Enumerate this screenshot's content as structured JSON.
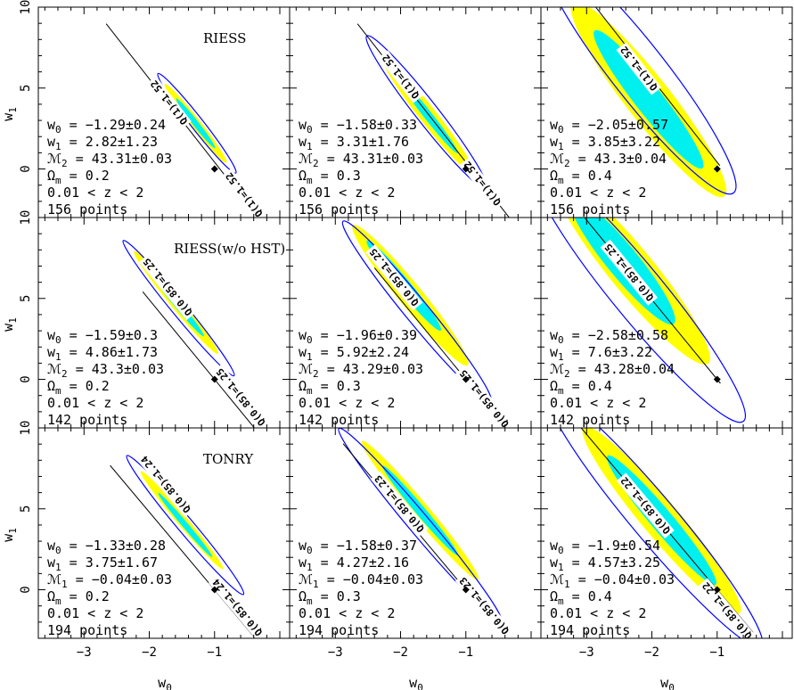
{
  "chart_data": {
    "type": "contour-grid",
    "x_axis": {
      "label_base": "w",
      "label_sub": "0",
      "range": [
        -3.7,
        0.15
      ],
      "ticks": [
        -3,
        -2,
        -1
      ]
    },
    "y_axis": {
      "label_base": "w",
      "label_sub": "1",
      "range": [
        -3,
        10
      ],
      "ticks": [
        0,
        5,
        10
      ]
    },
    "colors": {
      "inner_region": "#00f0f0",
      "middle_region": "#ffff00",
      "outer_contour": "#0000ff",
      "degeneracy_line": "#000000",
      "fiducial_marker": "#000000"
    },
    "panels": [
      {
        "row": 0,
        "col": 0,
        "title": "RIESS",
        "line_label": "Q(1)=1.52",
        "stats": {
          "w0": "−1.29±0.24",
          "w1": "2.82±1.23",
          "M_sub": "2",
          "M": "43.31±0.03",
          "omega_m": "0.2",
          "z_range": "0.01 < z < 2",
          "points": "156 points"
        },
        "fiducial": [
          -1,
          0
        ],
        "best_fit": [
          -1.29,
          2.82
        ],
        "line": {
          "slope": -5.15,
          "intercept": -4.73,
          "x_range": [
            -2.66,
            0.15
          ]
        },
        "label_positions": [
          [
            -1.7,
            4.1
          ],
          [
            -0.55,
            -1.6
          ]
        ],
        "contours": [
          {
            "level": "outer",
            "center": [
              -1.27,
              2.82
            ],
            "semi_major": 3.9,
            "semi_minor": 0.095
          },
          {
            "level": "middle",
            "center": [
              -1.29,
              2.82
            ],
            "semi_major": 3.1,
            "semi_minor": 0.075
          },
          {
            "level": "inner",
            "center": [
              -1.29,
              2.82
            ],
            "semi_major": 1.95,
            "semi_minor": 0.045
          }
        ]
      },
      {
        "row": 0,
        "col": 1,
        "title": "",
        "line_label": "Q(1)=1.52",
        "stats": {
          "w0": "−1.58±0.33",
          "w1": "3.31±1.76",
          "M_sub": "2",
          "M": "43.31±0.03",
          "omega_m": "0.3",
          "z_range": "0.01 < z < 2",
          "points": "156 points"
        },
        "fiducial": [
          -1,
          0
        ],
        "best_fit": [
          -1.58,
          3.31
        ],
        "line": {
          "slope": -5.15,
          "intercept": -4.73,
          "x_range": [
            -2.66,
            -0.33
          ]
        },
        "label_positions": [
          [
            -2.0,
            5.7
          ],
          [
            -0.75,
            -0.9
          ]
        ],
        "contours": [
          {
            "level": "outer",
            "center": [
              -1.6,
              3.5
            ],
            "semi_major": 6.0,
            "semi_minor": 0.17
          },
          {
            "level": "middle",
            "center": [
              -1.58,
              3.31
            ],
            "semi_major": 4.6,
            "semi_minor": 0.13
          },
          {
            "level": "inner",
            "center": [
              -1.58,
              3.31
            ],
            "semi_major": 2.95,
            "semi_minor": 0.065
          }
        ]
      },
      {
        "row": 0,
        "col": 2,
        "title": "",
        "line_label": "Q(1)=1.52",
        "stats": {
          "w0": "−2.05±0.57",
          "w1": "3.85±3.22",
          "M_sub": "2",
          "M": "43.3±0.04",
          "omega_m": "0.4",
          "z_range": "0.01 < z < 2",
          "points": "156 points"
        },
        "fiducial": [
          -1,
          0
        ],
        "best_fit": [
          -2.05,
          3.85
        ],
        "line": {
          "slope": -5.15,
          "intercept": -4.73,
          "x_range": [
            -2.95,
            -0.96
          ]
        },
        "label_positions": [
          [
            -2.2,
            6.2
          ]
        ],
        "contours": [
          {
            "level": "outer",
            "center": [
              -2.2,
              6.0
            ],
            "semi_major": 9.5,
            "semi_minor": 0.42
          },
          {
            "level": "middle",
            "center": [
              -2.05,
              4.3
            ],
            "semi_major": 7.6,
            "semi_minor": 0.34
          },
          {
            "level": "inner",
            "center": [
              -2.05,
              4.3
            ],
            "semi_major": 5.4,
            "semi_minor": 0.21
          }
        ]
      },
      {
        "row": 1,
        "col": 0,
        "title": "RIESS(w/o HST)",
        "line_label": "Q(0.85)=1.25",
        "stats": {
          "w0": "−1.59±0.3",
          "w1": "4.86±1.73",
          "M_sub": "2",
          "M": "43.3±0.03",
          "omega_m": "0.2",
          "z_range": "0.01 < z < 2",
          "points": "142 points"
        },
        "fiducial": [
          -1,
          0
        ],
        "best_fit": [
          -1.59,
          4.86
        ],
        "line": {
          "slope": -4.92,
          "intercept": -4.92,
          "x_range": [
            -2.1,
            0.15
          ]
        },
        "label_positions": [
          [
            -1.72,
            5.7
          ],
          [
            -0.6,
            -1.1
          ]
        ],
        "contours": [
          {
            "level": "outer",
            "center": [
              -1.55,
              4.4
            ],
            "semi_major": 5.4,
            "semi_minor": 0.11
          },
          {
            "level": "middle",
            "center": [
              -1.59,
              4.75
            ],
            "semi_major": 4.1,
            "semi_minor": 0.09
          },
          {
            "level": "inner",
            "center": [
              -1.59,
              4.75
            ],
            "semi_major": 2.7,
            "semi_minor": 0.055
          }
        ]
      },
      {
        "row": 1,
        "col": 1,
        "title": "",
        "line_label": "Q(0.85)=1.25",
        "stats": {
          "w0": "−1.96±0.39",
          "w1": "5.92±2.24",
          "M_sub": "2",
          "M": "43.29±0.03",
          "omega_m": "0.3",
          "z_range": "0.01 < z < 2",
          "points": "142 points"
        },
        "fiducial": [
          -1,
          0
        ],
        "best_fit": [
          -1.96,
          5.92
        ],
        "line": {
          "slope": -4.92,
          "intercept": -4.92,
          "x_range": [
            -2.4,
            -0.75
          ]
        },
        "label_positions": [
          [
            -2.1,
            6.3
          ],
          [
            -0.72,
            -1.2
          ]
        ],
        "contours": [
          {
            "level": "outer",
            "center": [
              -1.75,
              4.2
            ],
            "semi_major": 7.2,
            "semi_minor": 0.18
          },
          {
            "level": "middle",
            "center": [
              -1.85,
              5.2
            ],
            "semi_major": 5.6,
            "semi_minor": 0.18
          },
          {
            "level": "inner",
            "center": [
              -1.95,
              5.8
            ],
            "semi_major": 3.6,
            "semi_minor": 0.1
          }
        ]
      },
      {
        "row": 1,
        "col": 2,
        "title": "",
        "line_label": "Q(0.85)=1.25",
        "stats": {
          "w0": "−2.58±0.58",
          "w1": "7.6±3.22",
          "M_sub": "2",
          "M": "43.28±0.04",
          "omega_m": "0.4",
          "z_range": "0.01 < z < 2",
          "points": "142 points"
        },
        "fiducial": [
          -1,
          0
        ],
        "best_fit": [
          -2.58,
          7.6
        ],
        "line": {
          "slope": -4.92,
          "intercept": -4.92,
          "x_range": [
            -3.05,
            -0.95
          ]
        },
        "label_positions": [
          [
            -2.35,
            6.6
          ]
        ],
        "contours": [
          {
            "level": "outer",
            "center": [
              -2.2,
              5.3
            ],
            "semi_major": 10.2,
            "semi_minor": 0.4
          },
          {
            "level": "middle",
            "center": [
              -2.3,
              6.7
            ],
            "semi_major": 7.4,
            "semi_minor": 0.34
          },
          {
            "level": "inner",
            "center": [
              -2.45,
              7.3
            ],
            "semi_major": 5.0,
            "semi_minor": 0.24
          }
        ]
      },
      {
        "row": 2,
        "col": 0,
        "title": "TONRY",
        "line_label": "Q(0.85)=1.24",
        "stats": {
          "w0": "−1.33±0.28",
          "w1": "3.75±1.67",
          "M_sub": "1",
          "M": "−0.04±0.03",
          "omega_m": "0.2",
          "z_range": "0.01 < z < 2",
          "points": "194 points"
        },
        "fiducial": [
          -1,
          0
        ],
        "best_fit": [
          -1.33,
          3.75
        ],
        "line": {
          "slope": -4.8,
          "intercept": -4.8,
          "x_range": [
            -2.6,
            0.15
          ]
        },
        "label_positions": [
          [
            -1.75,
            6.5
          ],
          [
            -0.65,
            -1.1
          ]
        ],
        "contours": [
          {
            "level": "outer",
            "center": [
              -1.45,
              4.0
            ],
            "semi_major": 5.6,
            "semi_minor": 0.12
          },
          {
            "level": "middle",
            "center": [
              -1.5,
              4.3
            ],
            "semi_major": 3.95,
            "semi_minor": 0.08
          },
          {
            "level": "inner",
            "center": [
              -1.45,
              4.0
            ],
            "semi_major": 2.6,
            "semi_minor": 0.045
          }
        ]
      },
      {
        "row": 2,
        "col": 1,
        "title": "",
        "line_label": "Q(0.85)=1.23",
        "stats": {
          "w0": "−1.58±0.37",
          "w1": "4.27±2.16",
          "M_sub": "1",
          "M": "−0.04±0.03",
          "omega_m": "0.3",
          "z_range": "0.01 < z < 2",
          "points": "194 points"
        },
        "fiducial": [
          -1,
          0
        ],
        "best_fit": [
          -1.58,
          4.27
        ],
        "line": {
          "slope": -4.8,
          "intercept": -4.8,
          "x_range": [
            -2.88,
            -0.45
          ]
        },
        "label_positions": [
          [
            -2.02,
            5.3
          ],
          [
            -0.72,
            -1.0
          ]
        ],
        "contours": [
          {
            "level": "outer",
            "center": [
              -1.7,
              4.0
            ],
            "semi_major": 7.8,
            "semi_minor": 0.16
          },
          {
            "level": "middle",
            "center": [
              -1.7,
              4.9
            ],
            "semi_major": 5.6,
            "semi_minor": 0.13
          },
          {
            "level": "inner",
            "center": [
              -1.7,
              4.9
            ],
            "semi_major": 3.6,
            "semi_minor": 0.075
          }
        ]
      },
      {
        "row": 2,
        "col": 2,
        "title": "",
        "line_label": "Q(0.85)=1.22",
        "stats": {
          "w0": "−1.9±0.54",
          "w1": "4.57±3.25",
          "M_sub": "1",
          "M": "−0.04±0.03",
          "omega_m": "0.4",
          "z_range": "0.01 < z < 2",
          "points": "194 points"
        },
        "fiducial": [
          -1,
          0
        ],
        "best_fit": [
          -1.9,
          4.57
        ],
        "line": {
          "slope": -4.8,
          "intercept": -4.8,
          "x_range": [
            -3.08,
            -0.45
          ]
        },
        "label_positions": [
          [
            -2.1,
            5.2
          ],
          [
            -0.85,
            -1.3
          ]
        ],
        "contours": [
          {
            "level": "outer",
            "center": [
              -1.95,
              4.3
            ],
            "semi_major": 10.2,
            "semi_minor": 0.34
          },
          {
            "level": "middle",
            "center": [
              -1.85,
              4.3
            ],
            "semi_major": 7.5,
            "semi_minor": 0.28
          },
          {
            "level": "inner",
            "center": [
              -1.85,
              4.3
            ],
            "semi_major": 5.2,
            "semi_minor": 0.17
          }
        ]
      }
    ]
  }
}
